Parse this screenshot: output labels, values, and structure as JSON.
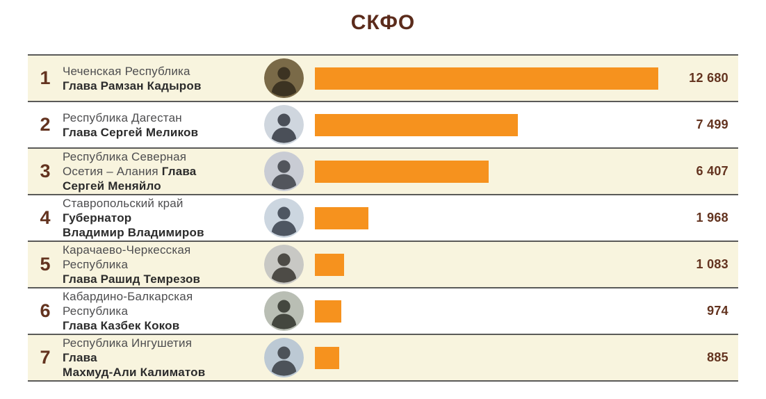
{
  "title": "СКФО",
  "colors": {
    "accent_bar": "#F6921E",
    "title_text": "#5B2B1B",
    "number_text": "#63331F",
    "row_alt_bg": "#F8F4DE",
    "row_bg": "#FFFFFF",
    "separator": "#5A5A58",
    "region_text": "#4D4D4F",
    "leader_text": "#2B2B2B"
  },
  "rows": [
    {
      "rank": "1",
      "lines": [
        [
          {
            "t": "Чеченская Республика",
            "b": false
          }
        ],
        [
          {
            "t": "Глава Рамзан Кадыров",
            "b": true
          }
        ]
      ],
      "value": 12680,
      "value_label": "12 680",
      "photo": {
        "bg": "#7a6a48",
        "fg": "#3c3322"
      }
    },
    {
      "rank": "2",
      "lines": [
        [
          {
            "t": "Республика Дагестан",
            "b": false
          }
        ],
        [
          {
            "t": "Глава Сергей Меликов",
            "b": true
          }
        ]
      ],
      "value": 7499,
      "value_label": "7 499",
      "photo": {
        "bg": "#cfd6de",
        "fg": "#4a4f58"
      }
    },
    {
      "rank": "3",
      "lines": [
        [
          {
            "t": "Республика Северная",
            "b": false
          }
        ],
        [
          {
            "t": "Осетия – Алания ",
            "b": false
          },
          {
            "t": "Глава",
            "b": true
          }
        ],
        [
          {
            "t": "Сергей Меняйло",
            "b": true
          }
        ]
      ],
      "value": 6407,
      "value_label": "6 407",
      "photo": {
        "bg": "#c9ccd4",
        "fg": "#52555c"
      }
    },
    {
      "rank": "4",
      "lines": [
        [
          {
            "t": "Ставропольский край",
            "b": false
          }
        ],
        [
          {
            "t": "Губернатор",
            "b": true
          }
        ],
        [
          {
            "t": "Владимир Владимиров",
            "b": true
          }
        ]
      ],
      "value": 1968,
      "value_label": "1 968",
      "photo": {
        "bg": "#ccd6e0",
        "fg": "#4e5662"
      }
    },
    {
      "rank": "5",
      "lines": [
        [
          {
            "t": "Карачаево-Черкесская",
            "b": false
          }
        ],
        [
          {
            "t": "Республика",
            "b": false
          }
        ],
        [
          {
            "t": "Глава Рашид Темрезов",
            "b": true
          }
        ]
      ],
      "value": 1083,
      "value_label": "1 083",
      "photo": {
        "bg": "#c8c8c4",
        "fg": "#4d4b46"
      }
    },
    {
      "rank": "6",
      "lines": [
        [
          {
            "t": "Кабардино-Балкарская",
            "b": false
          }
        ],
        [
          {
            "t": "Республика",
            "b": false
          }
        ],
        [
          {
            "t": "Глава Казбек Коков",
            "b": true
          }
        ]
      ],
      "value": 974,
      "value_label": "974",
      "photo": {
        "bg": "#b9beb4",
        "fg": "#44473f"
      }
    },
    {
      "rank": "7",
      "lines": [
        [
          {
            "t": "Республика Ингушетия",
            "b": false
          }
        ],
        [
          {
            "t": "Глава",
            "b": true
          }
        ],
        [
          {
            "t": "Махмуд-Али Калиматов",
            "b": true
          }
        ]
      ],
      "value": 885,
      "value_label": "885",
      "photo": {
        "bg": "#bcc9d4",
        "fg": "#4c5259"
      }
    }
  ],
  "chart_data": {
    "type": "bar",
    "orientation": "horizontal",
    "title": "СКФО",
    "categories": [
      "Чеченская Республика Глава Рамзан Кадыров",
      "Республика Дагестан Глава Сергей Меликов",
      "Республика Северная Осетия – Алания Глава Сергей Меняйло",
      "Ставропольский край Губернатор Владимир Владимиров",
      "Карачаево-Черкесская Республика Глава Рашид Темрезов",
      "Кабардино-Балкарская Республика Глава Казбек Коков",
      "Республика Ингушетия Глава Махмуд-Али Калиматов"
    ],
    "values": [
      12680,
      7499,
      6407,
      1968,
      1083,
      974,
      885
    ],
    "value_labels": [
      "12 680",
      "7 499",
      "6 407",
      "1 968",
      "1 083",
      "974",
      "885"
    ],
    "xlim": [
      0,
      12680
    ],
    "bar_color": "#F6921E",
    "grid": false,
    "legend": false
  }
}
